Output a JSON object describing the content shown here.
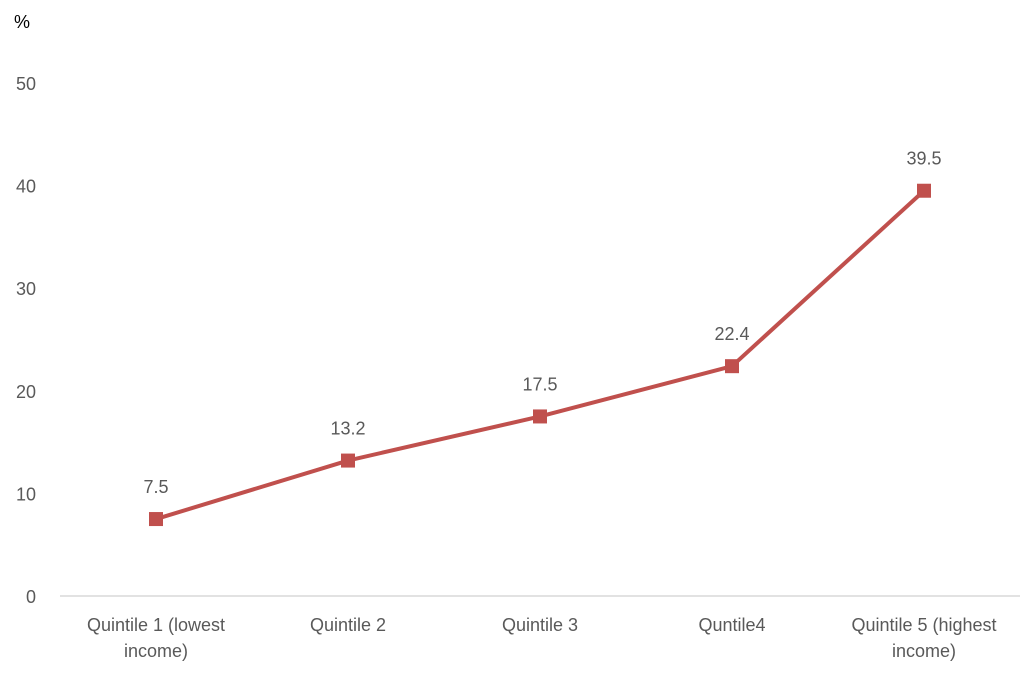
{
  "chart_data": {
    "type": "line",
    "title": "",
    "ylabel": "%",
    "xlabel": "",
    "ylim": [
      0,
      50
    ],
    "yticks": [
      0,
      10,
      20,
      30,
      40,
      50
    ],
    "grid": false,
    "categories": [
      [
        "Quintile 1 (lowest",
        "income)"
      ],
      [
        "Quintile 2"
      ],
      [
        "Quintile 3"
      ],
      [
        "Quntile4"
      ],
      [
        "Quintile 5 (highest",
        "income)"
      ]
    ],
    "series": [
      {
        "values": [
          7.5,
          13.2,
          17.5,
          22.4,
          39.5
        ],
        "labels": [
          "7.5",
          "13.2",
          "17.5",
          "22.4",
          "39.5"
        ],
        "color": "#c0504d",
        "marker": "square"
      }
    ]
  }
}
